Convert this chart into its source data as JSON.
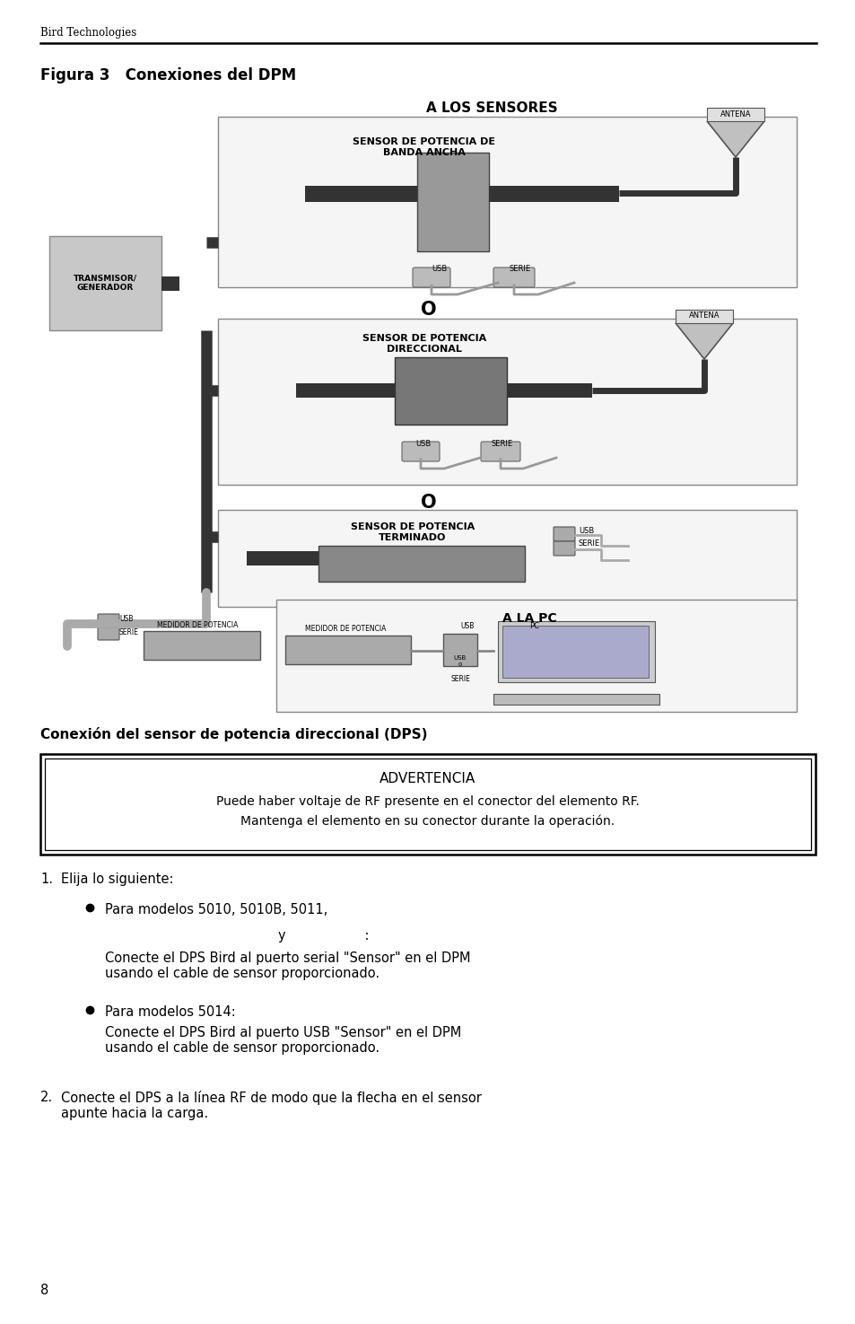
{
  "page_bg": "#ffffff",
  "header_text": "Bird Technologies",
  "fig_title": "Figura 3   Conexiones del DPM",
  "diagram_label_top": "A LOS SENSORES",
  "sensor1_label": "SENSOR DE POTENCIA DE\nBANDA ANCHA",
  "sensor2_label": "SENSOR DE POTENCIA\nDIRECCIONAL",
  "sensor3_label": "SENSOR DE POTENCIA\nTERMINADO",
  "antena_label": "ANTENA",
  "transmisor_label": "TRANSMISOR/\nGENERADOR",
  "usb_label": "USB",
  "serie_label": "SERIE",
  "or_label": "O",
  "alapc_label": "A LA PC",
  "medidor_label": "MEDIDOR DE POTENCIA",
  "pc_label": "PC",
  "section2_title": "Conexión del sensor de potencia direccional (DPS)",
  "warning_title": "ADVERTENCIA",
  "warning_text1": "Puede haber voltaje de RF presente en el conector del elemento RF.",
  "warning_text2": "Mantenga el elemento en su conector durante la operación.",
  "step1_text": "Elija lo siguiente:",
  "bullet1a": "Para modelos 5010, 5010B, 5011,",
  "bullet1b": "y                   :",
  "bullet1c": "Conecte el DPS Bird al puerto serial \"Sensor\" en el DPM\nusando el cable de sensor proporcionado.",
  "bullet2a": "Para modelos 5014:",
  "bullet2b": "Conecte el DPS Bird al puerto USB \"Sensor\" en el DPM\nusando el cable de sensor proporcionado.",
  "step2_text": "Conecte el DPS a la línea RF de modo que la flecha en el sensor\napunte hacia la carga.",
  "page_num": "8",
  "light_gray": "#c8c8c8",
  "medium_gray": "#aaaaaa",
  "dark_gray": "#555555"
}
